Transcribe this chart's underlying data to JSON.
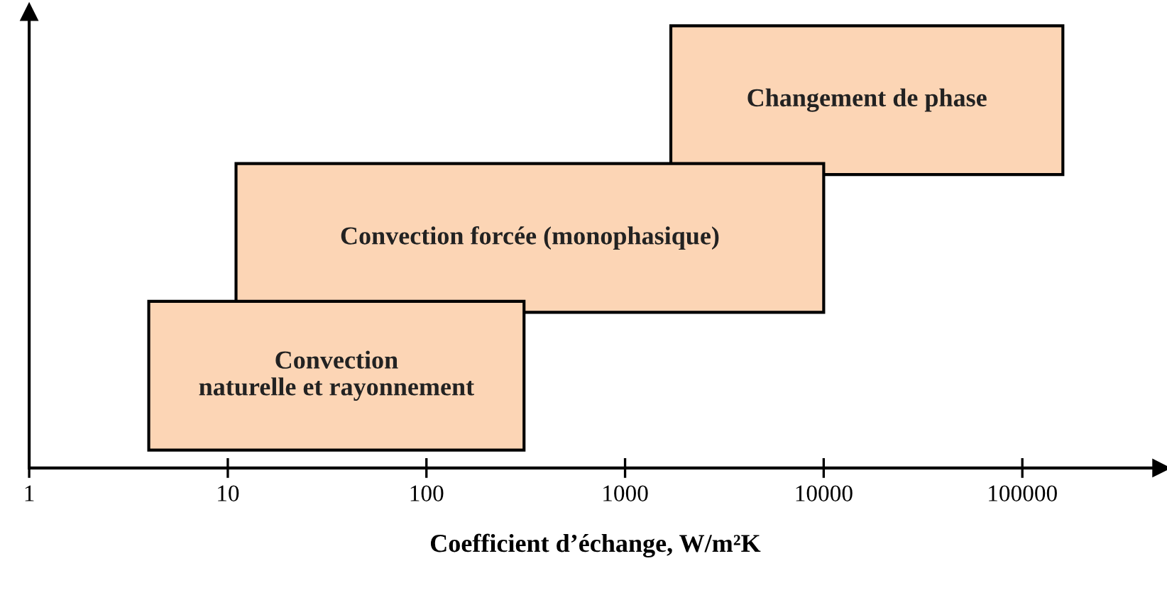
{
  "chart_data": {
    "type": "bar",
    "orientation": "horizontal",
    "categories": [
      "Changement de phase",
      "Convection forcée (monophasique)",
      "Convection\nnaturelle et rayonnement"
    ],
    "base": [
      1700,
      11,
      4
    ],
    "values": [
      158300,
      9989,
      306
    ],
    "color": "#fcd5b5",
    "xlabel": "Coefficient d’échange, W/m²K",
    "log": "x",
    "xlim": [
      1,
      500000
    ],
    "xticks": [
      1,
      10,
      100,
      1000,
      10000,
      100000
    ],
    "tick_labels": "x",
    "grid": false,
    "legend": false
  }
}
